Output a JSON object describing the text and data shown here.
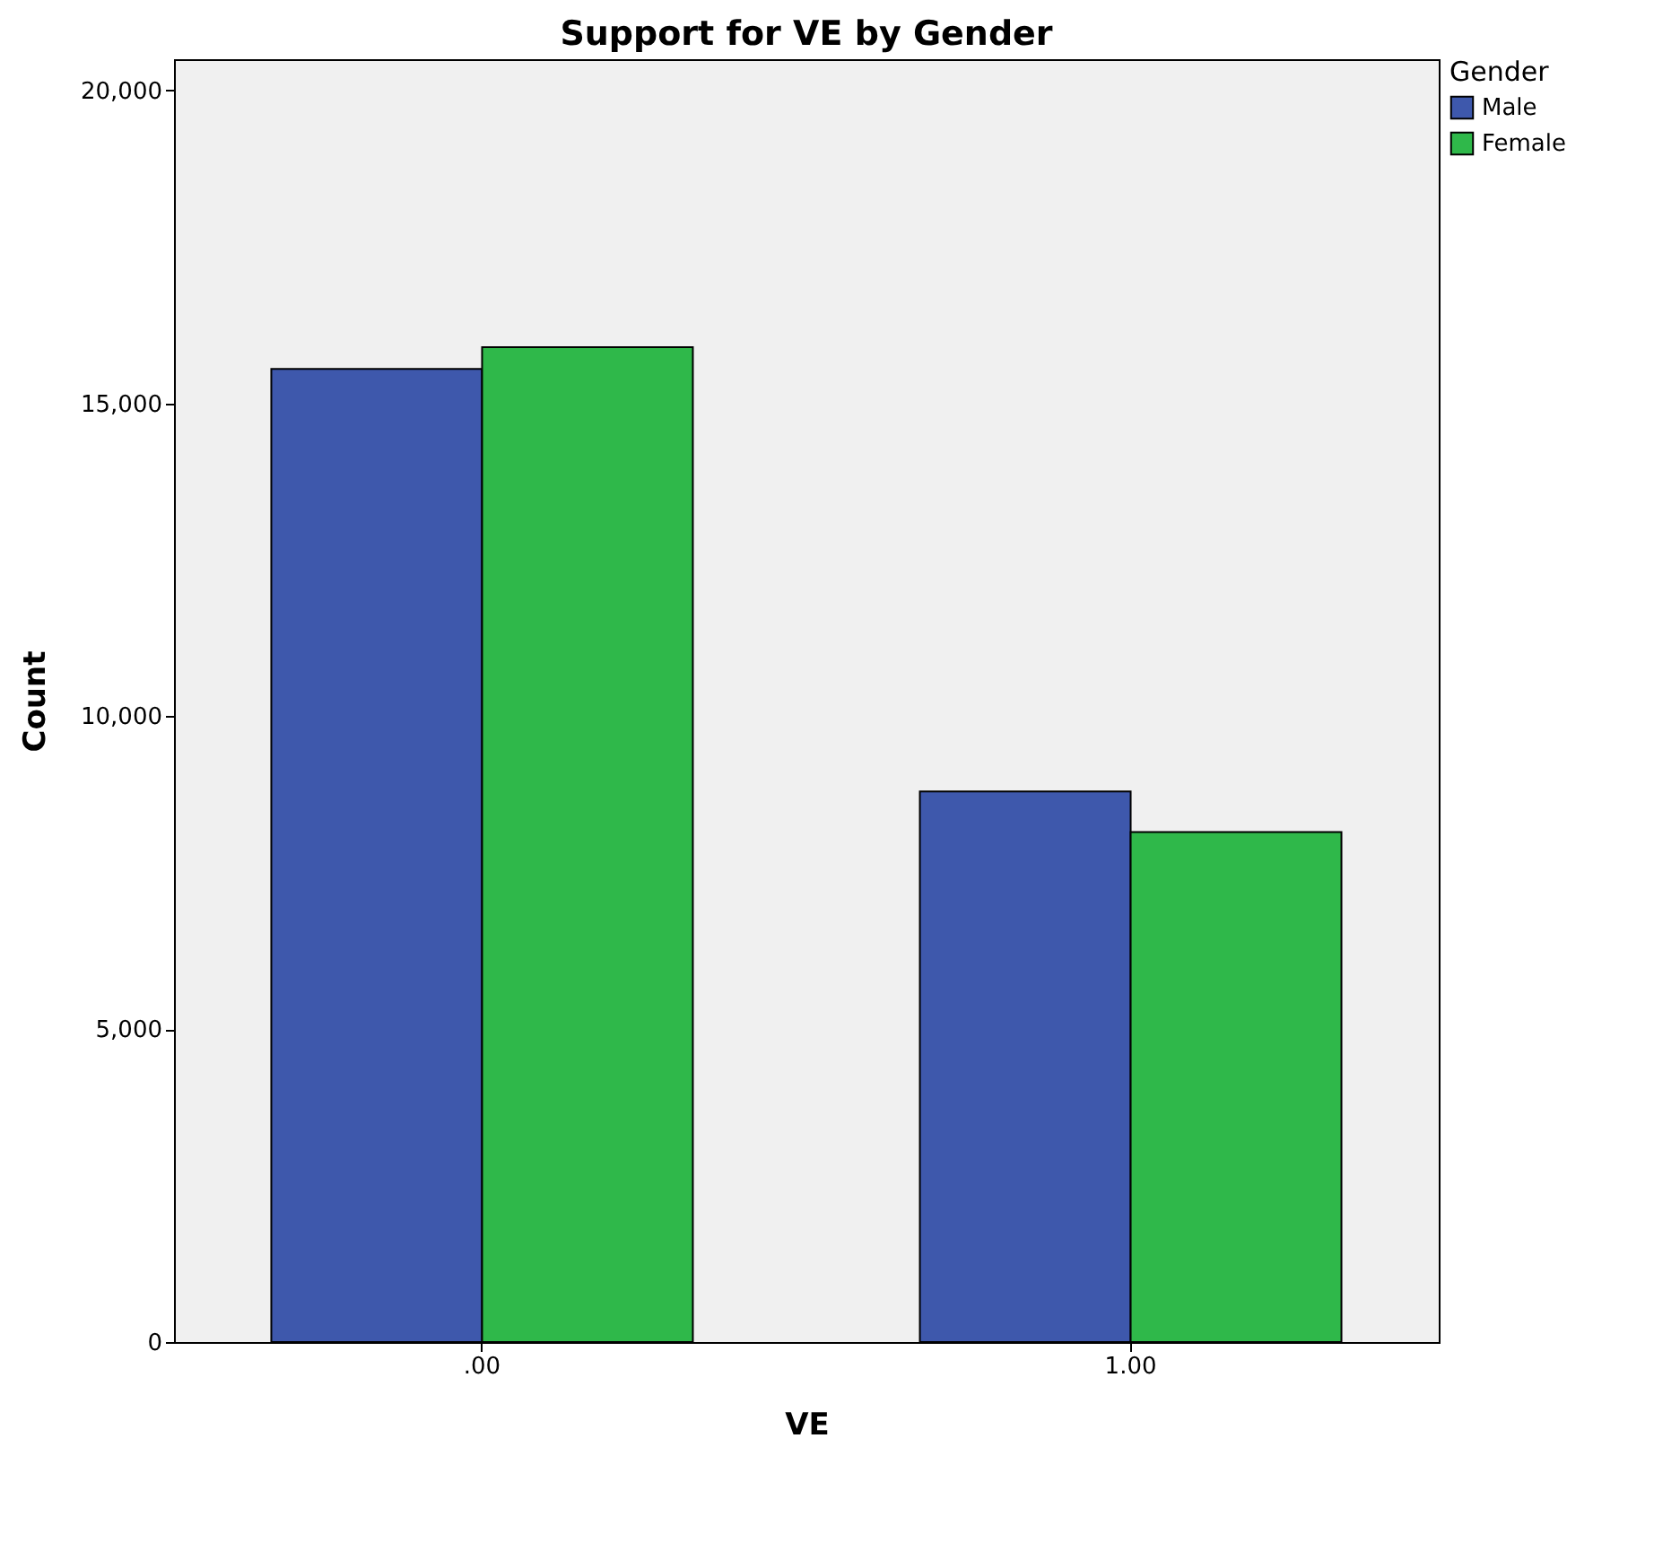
{
  "chart_data": {
    "type": "bar",
    "title": "Support for VE by Gender",
    "xlabel": "VE",
    "ylabel": "Count",
    "legend_title": "Gender",
    "categories": [
      ".00",
      "1.00"
    ],
    "series": [
      {
        "name": "Male",
        "color": "#3e58ac",
        "values": [
          15550,
          8800
        ]
      },
      {
        "name": "Female",
        "color": "#2fb84a",
        "values": [
          15900,
          8150
        ]
      }
    ],
    "ylim": [
      0,
      20500
    ],
    "yticks": [
      0,
      {
        "value": 5000,
        "label": "5,000"
      },
      {
        "value": 10000,
        "label": "10,000"
      },
      {
        "value": 15000,
        "label": "15,000"
      },
      {
        "value": 20000,
        "label": "20,000"
      }
    ],
    "grid": false,
    "legend": "right"
  }
}
